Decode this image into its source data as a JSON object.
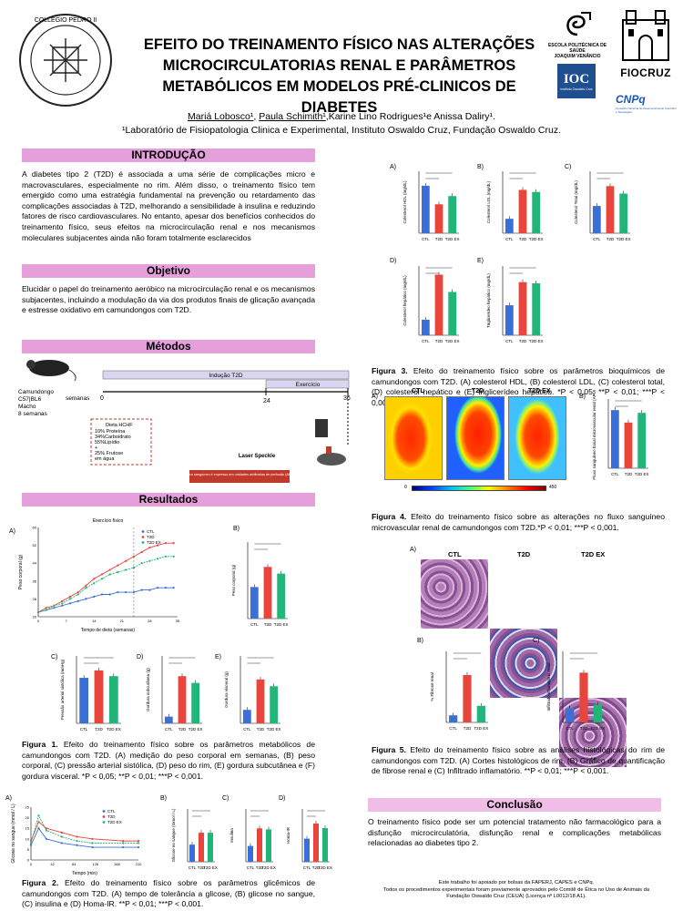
{
  "header": {
    "title_lines": [
      "EFEITO DO TREINAMENTO FÍSICO NAS ALTERAÇÕES",
      "MICROCIRCULATORIAS RENAL E PARÂMETROS",
      "METABÓLICOS EM MODELOS PRÉ-CLINICOS DE DIABETES"
    ],
    "author1": "Mariá Lobosco¹",
    "author2": "Paula Schimith¹",
    "author_rest": "Karine Lino Rodrigues¹e Anissa Daliry¹.",
    "affiliation": "¹Laboratório de Fisiopatologia Clinica e Experimental, Instituto Oswaldo Cruz, Fundação Oswaldo Cruz.",
    "school_line1": "ESCOLA POLITÉCNICA DE SAÚDE",
    "school_line2": "JOAQUIM VENÂNCIO",
    "ioc": "IOC",
    "ioc_sub": "Instituto Oswaldo Cruz",
    "fiocruz": "FIOCRUZ",
    "cnpq": "CNPq",
    "cnpq_sub": "Conselho Nacional de Desenvolvimento Científico e Tecnológico",
    "seal_text": "COLLEGIO PEDRO II"
  },
  "intro": {
    "heading": "INTRODUÇÃO",
    "text": "A diabetes tipo 2 (T2D) é associada a uma série de complicações micro e macrovasculares, especialmente no rim. Além disso, o treinamento físico tem emergido como uma estratégia fundamental na prevenção ou retardamento das complicações associadas à T2D, melhorando a sensibilidade à insulina e reduzindo fatores de risco cardiovasculares. No entanto, apesar dos benefícios conhecidos do treinamento físico, seus efeitos na microcirculação renal e nos mecanismos moleculares subjacentes ainda não foram totalmente esclarecidos"
  },
  "objetivo": {
    "heading": "Objetivo",
    "text": "Elucidar o papel do treinamento aeróbico na microcirculação renal e os mecanismos subjacentes, incluindo a modulação da via dos produtos finais de glicação avançada e estresse oxidativo em camundongos com T2D."
  },
  "metodos": {
    "heading": "Métodos",
    "animal": [
      "Camundongo",
      "C57|BL6",
      "Macho",
      "8 semanas"
    ],
    "semanas": "semanas",
    "timeline_ticks": [
      "0",
      "24",
      "36"
    ],
    "inducao": "Indução T2D",
    "exercicio": "Exercício",
    "diet": [
      "Dieta HCHF",
      "10% Proteína",
      "34%Carboidrato",
      "55%Lipídio",
      "+",
      "25% Frutose",
      "em água"
    ],
    "laser": "Laser Speckle",
    "flux_note": "Fluxo sanguíneo é expresso em unidades arbitrárias de perfusão (APU)"
  },
  "resultados": {
    "heading": "Resultados"
  },
  "fig1": {
    "line_title": "Exercício físico",
    "ylabel_a": "Peso corporal (g)",
    "xlabel_a": "Tempo de dieta (semanas)",
    "legend": [
      "CTL",
      "T2D",
      "T2D EX"
    ],
    "ylabel_b": "Peso corporal (g)",
    "ylabel_c": "Pressão arterial sistólica (mmHg)",
    "ylabel_d": "Gordura subcutânea (g)",
    "ylabel_e": "Gordura visceral (g)",
    "groups": [
      "CTL",
      "T2D",
      "T2D EX"
    ],
    "caption_label": "Figura 1.",
    "caption": "Efeito do treinamento físico sobre os parâmetros metabólicos de camundongos com T2D. (A) medição do peso corporal em semanas, (B) peso corporal, (C) pressão arterial sistólica, (D) peso do rim, (E) gordura subcutânea e (F) gordura visceral. *P < 0,05; **P < 0,01; ***P < 0,001."
  },
  "fig2": {
    "ylabel_a": "Glicose no sangue (mmol / L)",
    "xlabel_a": "Tempo (min)",
    "ylabel_b": "Glicose no sangue (mmol / L)",
    "ylabel_c": "Insulina",
    "ylabel_d": "Homa-IR",
    "caption_label": "Figura 2.",
    "caption": "Efeito do treinamento físico sobre os parâmetros glicêmicos de camundongos com T2D. (A) tempo de tolerância a glicose, (B) glicose no sangue, (C) insulina e (D) Homa-IR. **P < 0,01; ***P < 0,001."
  },
  "fig3": {
    "ylabels": [
      "Colesterol HDL (mg/dL)",
      "Colesterol LDL (mg/dL)",
      "Colesterol Total (mg/dL)",
      "Colesterol hepático (mg/dL)",
      "Triglicerídeo hepático (mg/dL)"
    ],
    "caption_label": "Figura 3.",
    "caption": "Efeito do treinamento físico sobre os parâmetros bioquímicos de camundongos com T2D. (A) colesterol HDL, (B) colesterol LDL, (C) colesterol total, (D) colesterol hepático e (E) triglicerídeo hepático. *P < 0,05; **P < 0,01; ***P < 0,001."
  },
  "fig4": {
    "labels": [
      "CTL",
      "T2D",
      "T2D EX"
    ],
    "scale": [
      "0",
      "450"
    ],
    "ylabel_b": "Fluxo sanguíneo basal microvascular renal (APUs)",
    "caption_label": "Figura 4.",
    "caption": "Efeito do treinamento físico sobre as alterações no fluxo sanguíneo microvascular renal de camundongos com T2D.*P < 0,01; ***P < 0,001."
  },
  "fig5": {
    "labels": [
      "CTL",
      "T2D",
      "T2D EX"
    ],
    "ylabel_b": "% Fibrose renal",
    "ylabel_c": "Infiltrado inflamatório renal",
    "caption_label": "Figura 5.",
    "caption": "Efeito do treinamento físico sobre as análises histológicas do rim de camundongos com T2D. (A) Cortes histológicos de rim, (B) Gráfico de quantificação de fibrose renal e (C) Infiltrado inflamatório. **P < 0,01; ***P < 0,001."
  },
  "conclusao": {
    "heading": "Conclusão",
    "text": "O treinamento físico pode ser um potencial tratamento não farmacológico para a disfunção microcirculatória, disfunção renal e complicações metabólicas relacionadas ao diabetes tipo 2."
  },
  "footer": {
    "line1": "Este trabalho foi apoiado por bolsas da FAPERJ, CAPES e CNPq.",
    "line2": "Todos os procedimentos experimentais foram previamente aprovados pelo Comitê de Ética no Uso de Animais da",
    "line3": "Fundação Oswaldo Cruz (CEUA) (Licença nº L0012/18 A1)."
  },
  "colors": {
    "ctl": "#3b6fd8",
    "t2d": "#e8453c",
    "t2dex": "#21b57a",
    "section": "#e5a0dc"
  },
  "chart_data": [
    {
      "id": "fig1A",
      "type": "line",
      "x": [
        0,
        2,
        4,
        6,
        8,
        10,
        12,
        14,
        16,
        18,
        20,
        22,
        24,
        26,
        28,
        30,
        32,
        34
      ],
      "series": [
        {
          "name": "CTL",
          "values": [
            22,
            23,
            24,
            25,
            26,
            27,
            28,
            29,
            30,
            30,
            31,
            31,
            31,
            32,
            32,
            33,
            33,
            33
          ]
        },
        {
          "name": "T2D",
          "values": [
            22,
            24,
            25,
            27,
            29,
            31,
            34,
            37,
            39,
            41,
            43,
            45,
            47,
            49,
            51,
            52,
            53,
            53
          ]
        },
        {
          "name": "T2D EX",
          "values": [
            22,
            23,
            25,
            26,
            28,
            30,
            33,
            35,
            37,
            39,
            40,
            41,
            42,
            44,
            45,
            46,
            47,
            47
          ]
        }
      ],
      "xlim": [
        0,
        35
      ],
      "ylim": [
        20,
        60
      ]
    },
    {
      "id": "fig1B",
      "type": "bar",
      "categories": [
        "CTL",
        "T2D",
        "T2D EX"
      ],
      "values": [
        33,
        54,
        47
      ],
      "ylim": [
        0,
        80
      ]
    },
    {
      "id": "fig1C",
      "type": "bar",
      "categories": [
        "CTL",
        "T2D",
        "T2D EX"
      ],
      "values": [
        135,
        157,
        140
      ],
      "ylim": [
        0,
        200
      ]
    },
    {
      "id": "fig1D",
      "type": "bar",
      "categories": [
        "CTL",
        "T2D",
        "T2D EX"
      ],
      "values": [
        0.3,
        2.1,
        1.8
      ],
      "ylim": [
        0,
        3
      ]
    },
    {
      "id": "fig1E",
      "type": "bar",
      "categories": [
        "CTL",
        "T2D",
        "T2D EX"
      ],
      "values": [
        0.4,
        1.3,
        1.1
      ],
      "ylim": [
        0,
        2
      ]
    },
    {
      "id": "fig2A",
      "type": "line",
      "x": [
        0,
        15,
        30,
        60,
        90,
        120,
        180,
        210
      ],
      "series": [
        {
          "name": "CTL",
          "values": [
            7,
            15,
            10,
            8,
            7,
            6,
            6,
            6
          ]
        },
        {
          "name": "T2D",
          "values": [
            9,
            18,
            15,
            13,
            11,
            10,
            9,
            9
          ]
        },
        {
          "name": "T2D EX",
          "values": [
            8,
            21,
            14,
            11,
            9,
            8,
            8,
            8
          ]
        }
      ],
      "xlim": [
        0,
        210
      ],
      "ylim": [
        0,
        25
      ]
    },
    {
      "id": "fig2B",
      "type": "bar",
      "categories": [
        "CTL",
        "T2D",
        "T2D EX"
      ],
      "values": [
        6.5,
        11,
        11
      ],
      "ylim": [
        0,
        20
      ]
    },
    {
      "id": "fig2C",
      "type": "bar",
      "categories": [
        "CTL",
        "T2D",
        "T2D EX"
      ],
      "values": [
        0.45,
        0.95,
        0.92
      ],
      "ylim": [
        0,
        1.5
      ]
    },
    {
      "id": "fig2D",
      "type": "bar",
      "categories": [
        "CTL",
        "T2D",
        "T2D EX"
      ],
      "values": [
        3.5,
        5.8,
        5.1
      ],
      "ylim": [
        0,
        8
      ]
    },
    {
      "id": "fig3A",
      "type": "bar",
      "categories": [
        "CTL",
        "T2D",
        "T2D EX"
      ],
      "values": [
        23,
        14,
        18
      ],
      "ylim": [
        0,
        30
      ]
    },
    {
      "id": "fig3B",
      "type": "bar",
      "categories": [
        "CTL",
        "T2D",
        "T2D EX"
      ],
      "values": [
        3.5,
        10.5,
        10
      ],
      "ylim": [
        0,
        15
      ]
    },
    {
      "id": "fig3C",
      "type": "bar",
      "categories": [
        "CTL",
        "T2D",
        "T2D EX"
      ],
      "values": [
        110,
        190,
        160
      ],
      "ylim": [
        0,
        250
      ]
    },
    {
      "id": "fig3D",
      "type": "bar",
      "categories": [
        "CTL",
        "T2D",
        "T2D EX"
      ],
      "values": [
        9,
        35,
        25
      ],
      "ylim": [
        0,
        40
      ]
    },
    {
      "id": "fig3E",
      "type": "bar",
      "categories": [
        "CTL",
        "T2D",
        "T2D EX"
      ],
      "values": [
        26,
        46,
        45
      ],
      "ylim": [
        0,
        60
      ]
    },
    {
      "id": "fig4B",
      "type": "bar",
      "categories": [
        "CTL",
        "T2D",
        "T2D EX"
      ],
      "values": [
        420,
        330,
        400
      ],
      "ylim": [
        0,
        500
      ]
    },
    {
      "id": "fig5B",
      "type": "bar",
      "categories": [
        "CTL",
        "T2D",
        "T2D EX"
      ],
      "values": [
        3,
        20,
        7
      ],
      "ylim": [
        0,
        30
      ]
    },
    {
      "id": "fig5C",
      "type": "bar",
      "categories": [
        "CTL",
        "T2D",
        "T2D EX"
      ],
      "values": [
        0.8,
        2.8,
        1.0
      ],
      "ylim": [
        0,
        4
      ]
    }
  ]
}
